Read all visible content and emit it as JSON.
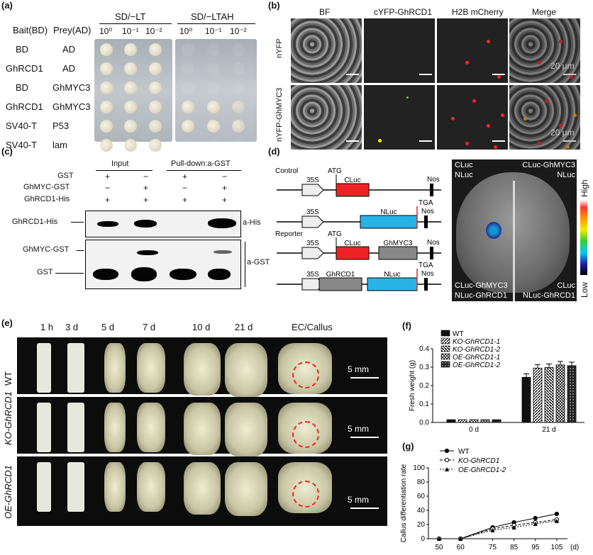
{
  "panels": {
    "a": "(a)",
    "b": "(b)",
    "c": "(c)",
    "d": "(d)",
    "e": "(e)",
    "f": "(f)",
    "g": "(g)"
  },
  "a": {
    "media": [
      "SD/−LT",
      "SD/−LTAH"
    ],
    "bait_header": "Bait(BD)",
    "prey_header": "Prey(AD)",
    "dilutions": [
      "10⁰",
      "10⁻¹",
      "10⁻²"
    ],
    "rows": [
      {
        "bait": "BD",
        "prey": "AD"
      },
      {
        "bait": "GhRCD1",
        "prey": "AD"
      },
      {
        "bait": "BD",
        "prey": "GhMYC3"
      },
      {
        "bait": "GhRCD1",
        "prey": "GhMYC3"
      },
      {
        "bait": "SV40-T",
        "prey": "P53"
      },
      {
        "bait": "SV40-T",
        "prey": "lam"
      }
    ]
  },
  "b": {
    "columns": [
      "BF",
      "cYFP-GhRCD1",
      "H2B mCherry",
      "Merge"
    ],
    "rows": [
      "nYFP",
      "nYFP-GhMYC3"
    ],
    "scale": "20 μm"
  },
  "c": {
    "input": "Input",
    "pulldown": "Pull-down:a-GST",
    "row_labels": [
      "GST",
      "GhMYC-GST",
      "GhRCD1-His"
    ],
    "signs": [
      [
        "+",
        "−",
        "+",
        "−"
      ],
      [
        "−",
        "+",
        "−",
        "+"
      ],
      [
        "+",
        "+",
        "+",
        "+"
      ]
    ],
    "blot_left": [
      "GhRCD1-His",
      "GhMYC-GST",
      "GST"
    ],
    "blot_right": [
      "a-His",
      "a-GST"
    ]
  },
  "d": {
    "control": "Control",
    "reporter": "Reporter",
    "p35s": "35S",
    "atg": "ATG",
    "tga": "TGA",
    "nos": "Nos",
    "cluc": "CLuc",
    "nluc": "NLuc",
    "ghmyc3": "GhMYC3",
    "ghrcd1": "GhRCD1",
    "leaf": {
      "tl1": "CLuc",
      "tl2": "NLuc",
      "tr1": "CLuc-GhMYC3",
      "tr2": "NLuc",
      "bl1": "CLuc-GhMYC3",
      "bl2": "NLuc-GhRCD1",
      "br1": "CLuc",
      "br2": "NLuc-GhRCD1"
    },
    "high": "High",
    "low": "Low"
  },
  "e": {
    "times": [
      "1 h",
      "3 d",
      "5 d",
      "7 d",
      "10 d",
      "21 d",
      "EC/Callus"
    ],
    "rows": [
      "WT",
      "KO-GhRCD1",
      "OE-GhRCD1"
    ],
    "scale": "5 mm"
  },
  "chart_data": [
    {
      "type": "bar",
      "ylabel": "Fresh weight (g)",
      "categories": [
        "0 d",
        "21 d"
      ],
      "ylim": [
        0,
        0.4
      ],
      "yticks": [
        "0.0",
        "0.1",
        "0.2",
        "0.3",
        "0.4"
      ],
      "series": [
        {
          "name": "WT",
          "values": [
            0.015,
            0.245
          ]
        },
        {
          "name": "KO-GhRCD1-1",
          "values": [
            0.015,
            0.295
          ]
        },
        {
          "name": "KO-GhRCD1-2",
          "values": [
            0.015,
            0.298
          ]
        },
        {
          "name": "OE-GhRCD1-1",
          "values": [
            0.015,
            0.312
          ]
        },
        {
          "name": "OE-GhRCD1-2",
          "values": [
            0.015,
            0.308
          ]
        }
      ]
    },
    {
      "type": "line",
      "ylabel": "Callus differentiation rate",
      "x": [
        50,
        60,
        75,
        85,
        95,
        105
      ],
      "xtick_labels": [
        "50",
        "60",
        "75",
        "85",
        "95",
        "105"
      ],
      "xunit": "(d)",
      "ylim": [
        0,
        100
      ],
      "yticks": [
        "0",
        "20",
        "40",
        "60",
        "80",
        "100"
      ],
      "series": [
        {
          "name": "WT",
          "values": [
            0,
            0,
            16,
            23,
            29,
            35
          ]
        },
        {
          "name": "KO-GhRCD1",
          "values": [
            0,
            0,
            14,
            19,
            23,
            27
          ]
        },
        {
          "name": "OE-GhRCD1-2",
          "values": [
            0,
            0,
            12,
            16,
            21,
            25
          ]
        }
      ]
    }
  ]
}
